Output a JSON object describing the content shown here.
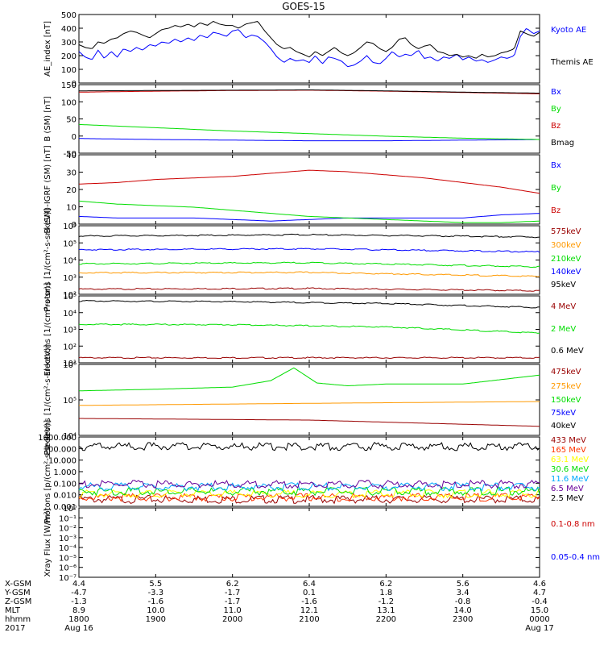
{
  "title": "GOES-15",
  "chart_data": [
    {
      "type": "line",
      "id": "ae",
      "ylabel": "AE_index [nT]",
      "ylim": [
        0,
        500
      ],
      "yscale": "linear",
      "yticks": [
        "0",
        "100",
        "200",
        "300",
        "400",
        "500"
      ],
      "series": [
        {
          "name": "Kyoto AE",
          "color": "#0000ff",
          "x": [
            0,
            0.08,
            0.17,
            0.25,
            0.33,
            0.42,
            0.5,
            0.58,
            0.67,
            0.75,
            0.83,
            0.92,
            1.0,
            1.08,
            1.17,
            1.25,
            1.33,
            1.42,
            1.5,
            1.58,
            1.67,
            1.75,
            1.83,
            1.92,
            2.0,
            2.08,
            2.17,
            2.25,
            2.33,
            2.42,
            2.5,
            2.58,
            2.67,
            2.75,
            2.83,
            2.92,
            3.0,
            3.08,
            3.17,
            3.25,
            3.33,
            3.42,
            3.5,
            3.58,
            3.67,
            3.75,
            3.83,
            3.92,
            4.0,
            4.08,
            4.17,
            4.25,
            4.33,
            4.42,
            4.5,
            4.58,
            4.67,
            4.75,
            4.83,
            4.92,
            5.0,
            5.08,
            5.17,
            5.25,
            5.33,
            5.42,
            5.5,
            5.58,
            5.67,
            5.75,
            5.83,
            5.92,
            6.0
          ],
          "y": [
            230,
            190,
            170,
            240,
            180,
            230,
            190,
            250,
            230,
            260,
            240,
            280,
            270,
            300,
            290,
            320,
            300,
            330,
            310,
            350,
            330,
            370,
            360,
            340,
            380,
            390,
            330,
            350,
            340,
            300,
            250,
            190,
            150,
            180,
            160,
            170,
            150,
            200,
            140,
            190,
            180,
            160,
            120,
            130,
            160,
            200,
            150,
            140,
            180,
            230,
            190,
            210,
            200,
            240,
            180,
            190,
            160,
            190,
            180,
            210,
            170,
            190,
            160,
            170,
            150,
            170,
            190,
            180,
            200,
            340,
            400,
            360,
            380
          ]
        },
        {
          "name": "Themis AE",
          "color": "#000000",
          "x": [
            0,
            0.08,
            0.17,
            0.25,
            0.33,
            0.42,
            0.5,
            0.58,
            0.67,
            0.75,
            0.83,
            0.92,
            1.0,
            1.08,
            1.17,
            1.25,
            1.33,
            1.42,
            1.5,
            1.58,
            1.67,
            1.75,
            1.83,
            1.92,
            2.0,
            2.08,
            2.17,
            2.25,
            2.33,
            2.42,
            2.5,
            2.58,
            2.67,
            2.75,
            2.83,
            2.92,
            3.0,
            3.08,
            3.17,
            3.25,
            3.33,
            3.42,
            3.5,
            3.58,
            3.67,
            3.75,
            3.83,
            3.92,
            4.0,
            4.08,
            4.17,
            4.25,
            4.33,
            4.42,
            4.5,
            4.58,
            4.67,
            4.75,
            4.83,
            4.92,
            5.0,
            5.08,
            5.17,
            5.25,
            5.33,
            5.42,
            5.5,
            5.58,
            5.67,
            5.75,
            5.83,
            5.92,
            6.0
          ],
          "y": [
            280,
            260,
            250,
            300,
            290,
            320,
            330,
            360,
            380,
            370,
            350,
            330,
            360,
            390,
            400,
            420,
            410,
            430,
            410,
            440,
            420,
            450,
            430,
            420,
            420,
            400,
            430,
            440,
            450,
            380,
            330,
            280,
            250,
            260,
            230,
            210,
            190,
            230,
            200,
            230,
            260,
            220,
            200,
            220,
            260,
            300,
            290,
            250,
            230,
            260,
            320,
            330,
            280,
            250,
            270,
            280,
            230,
            220,
            200,
            210,
            190,
            200,
            180,
            210,
            190,
            200,
            220,
            230,
            250,
            380,
            360,
            340,
            370
          ]
        }
      ]
    },
    {
      "type": "line",
      "id": "b_sm",
      "ylabel": "B (SM) [nT]",
      "ylim": [
        -60,
        150
      ],
      "yscale": "linear",
      "yticks": [
        "-50",
        "0",
        "50",
        "100",
        "150"
      ],
      "series": [
        {
          "name": "Bx",
          "color": "#0000ff",
          "x": [
            0,
            1,
            2,
            3,
            4,
            5,
            6
          ],
          "y": [
            -15,
            -18,
            -20,
            -22,
            -22,
            -20,
            -18
          ]
        },
        {
          "name": "By",
          "color": "#00dd00",
          "x": [
            0,
            1,
            2,
            3,
            4,
            5,
            6
          ],
          "y": [
            28,
            18,
            8,
            0,
            -8,
            -14,
            -18
          ]
        },
        {
          "name": "Bz",
          "color": "#cc0000",
          "x": [
            0,
            1,
            2,
            3,
            4,
            5,
            6
          ],
          "y": [
            127,
            130,
            132,
            133,
            130,
            126,
            122
          ]
        },
        {
          "name": "Bmag",
          "color": "#000000",
          "x": [
            0,
            1,
            2,
            3,
            4,
            5,
            6
          ],
          "y": [
            131,
            132,
            133,
            134,
            131,
            127,
            124
          ]
        }
      ]
    },
    {
      "type": "line",
      "id": "b_igrf",
      "ylabel": "B (SM)-IGRF (SM) [nT]",
      "ylim": [
        -5,
        40
      ],
      "yscale": "linear",
      "yticks": [
        "0",
        "10",
        "20",
        "30",
        "40"
      ],
      "series": [
        {
          "name": "Bx",
          "color": "#0000ff",
          "x": [
            0,
            0.5,
            1,
            1.5,
            2,
            2.5,
            3,
            3.5,
            4,
            4.5,
            5,
            5.5,
            6
          ],
          "y": [
            0,
            -1,
            -1,
            -1,
            -2,
            -3,
            -2,
            -1,
            -1,
            -1,
            -1,
            1,
            2
          ]
        },
        {
          "name": "By",
          "color": "#00dd00",
          "x": [
            0,
            0.5,
            1,
            1.5,
            2,
            2.5,
            3,
            3.5,
            4,
            4.5,
            5,
            5.5,
            6
          ],
          "y": [
            10,
            8,
            7,
            6,
            4,
            2,
            0,
            -1,
            -2,
            -3,
            -4,
            -4,
            -3
          ]
        },
        {
          "name": "Bz",
          "color": "#cc0000",
          "x": [
            0,
            0.5,
            1,
            1.5,
            2,
            2.5,
            3,
            3.5,
            4,
            4.5,
            5,
            5.5,
            6
          ],
          "y": [
            21,
            22,
            24,
            25,
            26,
            28,
            30,
            29,
            27,
            25,
            22,
            19,
            15
          ]
        }
      ]
    },
    {
      "type": "line",
      "id": "protons_mageds",
      "ylabel": "Protons [1/(cm²-s-sr-keV)]",
      "ylim": [
        100,
        1000000
      ],
      "yscale": "log",
      "yticks": [
        "10²",
        "10³",
        "10⁴",
        "10⁵",
        "10⁶"
      ],
      "series": [
        {
          "name": "575keV",
          "color": "#990000",
          "x": [
            0,
            3,
            6
          ],
          "y": [
            200,
            220,
            160
          ]
        },
        {
          "name": "300keV",
          "color": "#ff9900",
          "x": [
            0,
            3,
            6
          ],
          "y": [
            1800,
            1900,
            1100
          ]
        },
        {
          "name": "210keV",
          "color": "#00dd00",
          "x": [
            0,
            3,
            6
          ],
          "y": [
            6000,
            7000,
            4000
          ]
        },
        {
          "name": "140keV",
          "color": "#0000ff",
          "x": [
            0,
            3,
            6
          ],
          "y": [
            40000,
            45000,
            30000
          ]
        },
        {
          "name": "95keV",
          "color": "#000000",
          "x": [
            0,
            3,
            6
          ],
          "y": [
            250000,
            300000,
            220000
          ]
        }
      ]
    },
    {
      "type": "line",
      "id": "electrons_high",
      "ylabel": "Electrons [1/(cm²-s-sr)]",
      "ylim": [
        10,
        100000
      ],
      "yscale": "log",
      "yticks": [
        "10¹",
        "10²",
        "10³",
        "10⁴",
        "10⁵"
      ],
      "series": [
        {
          "name": "4 MeV",
          "color": "#990000",
          "x": [
            0,
            3,
            6
          ],
          "y": [
            20,
            20,
            20
          ]
        },
        {
          "name": "2 MeV",
          "color": "#00dd00",
          "x": [
            0,
            2,
            4,
            6
          ],
          "y": [
            2000,
            1900,
            1400,
            600
          ]
        },
        {
          "name": "0.6 MeV",
          "color": "#000000",
          "x": [
            0,
            2,
            4,
            6
          ],
          "y": [
            50000,
            45000,
            35000,
            20000
          ]
        }
      ]
    },
    {
      "type": "line",
      "id": "electrons_low",
      "ylabel": "Electrons [1/(cm²-s-sr-keV)]",
      "ylim": [
        10000,
        1000000
      ],
      "yscale": "log",
      "yticks": [
        "10⁴",
        "10⁵",
        "10⁶"
      ],
      "series": [
        {
          "name": "475keV",
          "color": "#990000",
          "x": [
            0,
            3,
            6
          ],
          "y": [
            30000,
            27000,
            18000
          ]
        },
        {
          "name": "275keV",
          "color": "#ff9900",
          "x": [
            0,
            3,
            6
          ],
          "y": [
            70000,
            80000,
            90000
          ]
        },
        {
          "name": "150keV",
          "color": "#00dd00",
          "x": [
            0,
            1,
            2,
            2.5,
            2.8,
            3.1,
            3.5,
            4,
            5,
            6
          ],
          "y": [
            180000,
            200000,
            230000,
            350000,
            800000,
            300000,
            250000,
            280000,
            280000,
            500000
          ]
        },
        {
          "name": "75keV",
          "color": "#0000ff",
          "x": [],
          "y": []
        },
        {
          "name": "40keV",
          "color": "#000000",
          "x": [],
          "y": []
        }
      ]
    },
    {
      "type": "line",
      "id": "protons_epead",
      "ylabel": "Protons [p/(cm²-s-sr-keV)]",
      "ylim": [
        0.001,
        1000
      ],
      "yscale": "log",
      "yticks": [
        "0.001",
        "0.010",
        "0.100",
        "1.000",
        "10.000",
        "100.000",
        "1000.000"
      ],
      "series": [
        {
          "name": "433 MeV",
          "color": "#990000",
          "x": [
            0,
            6
          ],
          "y": [
            0.004,
            0.004
          ]
        },
        {
          "name": "165 MeV",
          "color": "#ff3300",
          "x": [
            0,
            6
          ],
          "y": [
            0.006,
            0.006
          ]
        },
        {
          "name": "63.1 MeV",
          "color": "#ffff00",
          "x": [
            0,
            6
          ],
          "y": [
            0.012,
            0.012
          ]
        },
        {
          "name": "30.6 MeV",
          "color": "#00dd00",
          "x": [
            0,
            6
          ],
          "y": [
            0.02,
            0.02
          ]
        },
        {
          "name": "11.6 MeV",
          "color": "#00aaff",
          "x": [
            0,
            6
          ],
          "y": [
            0.05,
            0.05
          ]
        },
        {
          "name": "6.5 MeV",
          "color": "#660099",
          "x": [
            0,
            6
          ],
          "y": [
            0.08,
            0.08
          ]
        },
        {
          "name": "2.5 MeV",
          "color": "#000000",
          "x": [
            0,
            6
          ],
          "y": [
            150,
            150
          ]
        }
      ]
    },
    {
      "type": "line",
      "id": "xray",
      "ylabel": "Xray Flux [W/m²]",
      "ylim": [
        1e-07,
        1
      ],
      "yscale": "log",
      "yticks": [
        "10⁻⁷",
        "10⁻⁶",
        "10⁻⁵",
        "10⁻⁴",
        "10⁻³",
        "10⁻²",
        "10⁻¹",
        "10⁰"
      ],
      "series": [
        {
          "name": "0.1-0.8 nm",
          "color": "#cc0000",
          "x": [],
          "y": []
        },
        {
          "name": "0.05-0.4 nm",
          "color": "#0000ff",
          "x": [],
          "y": []
        }
      ]
    }
  ],
  "axis_table": {
    "row_labels": [
      "X-GSM",
      "Y-GSM",
      "Z-GSM",
      "MLT",
      "hhmm",
      "2017"
    ],
    "columns": [
      {
        "values": [
          "4.4",
          "-4.7",
          "-1.3",
          "8.9",
          "1800",
          "Aug 16"
        ]
      },
      {
        "values": [
          "5.5",
          "-3.3",
          "-1.6",
          "10.0",
          "1900",
          ""
        ]
      },
      {
        "values": [
          "6.2",
          "-1.7",
          "-1.7",
          "11.0",
          "2000",
          ""
        ]
      },
      {
        "values": [
          "6.4",
          "0.1",
          "-1.6",
          "12.1",
          "2100",
          ""
        ]
      },
      {
        "values": [
          "6.2",
          "1.8",
          "-1.2",
          "13.1",
          "2200",
          ""
        ]
      },
      {
        "values": [
          "5.6",
          "3.4",
          "-0.8",
          "14.0",
          "2300",
          ""
        ]
      },
      {
        "values": [
          "4.6",
          "4.7",
          "-0.4",
          "15.0",
          "0000",
          "Aug 17"
        ]
      }
    ]
  }
}
